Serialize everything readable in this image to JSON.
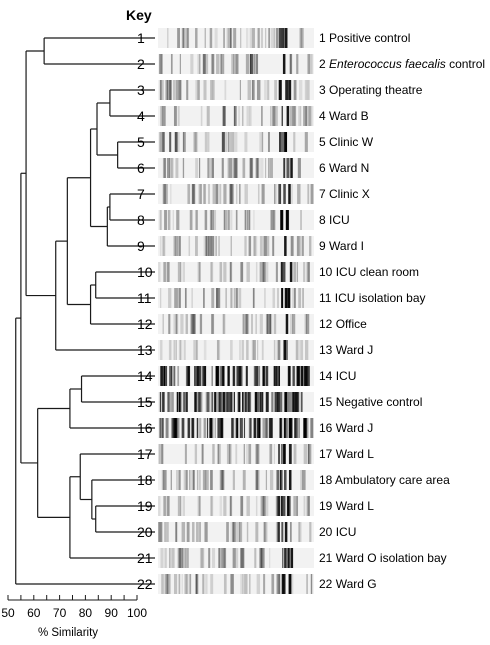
{
  "key_label": "Key",
  "lanes": [
    {
      "id": 1,
      "num": "1",
      "label_num": "1",
      "label": "Positive control",
      "label_italic": "",
      "label_after": ""
    },
    {
      "id": 2,
      "num": "2",
      "label_num": "2",
      "label": "",
      "label_italic": "Enterococcus faecalis",
      "label_after": " control"
    },
    {
      "id": 3,
      "num": "3",
      "label_num": "3",
      "label": "Operating theatre",
      "label_italic": "",
      "label_after": ""
    },
    {
      "id": 4,
      "num": "4",
      "label_num": "4",
      "label": "Ward B",
      "label_italic": "",
      "label_after": ""
    },
    {
      "id": 5,
      "num": "5",
      "label_num": "5",
      "label": "Clinic W",
      "label_italic": "",
      "label_after": ""
    },
    {
      "id": 6,
      "num": "6",
      "label_num": "6",
      "label": "Ward N",
      "label_italic": "",
      "label_after": ""
    },
    {
      "id": 7,
      "num": "7",
      "label_num": "7",
      "label": "Clinic X",
      "label_italic": "",
      "label_after": ""
    },
    {
      "id": 8,
      "num": "8",
      "label_num": "8",
      "label": "ICU",
      "label_italic": "",
      "label_after": ""
    },
    {
      "id": 9,
      "num": "9",
      "label_num": "9",
      "label": "Ward I",
      "label_italic": "",
      "label_after": ""
    },
    {
      "id": 10,
      "num": "10",
      "label_num": "10",
      "label": "ICU clean room",
      "label_italic": "",
      "label_after": ""
    },
    {
      "id": 11,
      "num": "11",
      "label_num": "11",
      "label": "ICU isolation bay",
      "label_italic": "",
      "label_after": ""
    },
    {
      "id": 12,
      "num": "12",
      "label_num": "12",
      "label": "Office",
      "label_italic": "",
      "label_after": ""
    },
    {
      "id": 13,
      "num": "13",
      "label_num": "13",
      "label": "Ward J",
      "label_italic": "",
      "label_after": ""
    },
    {
      "id": 14,
      "num": "14",
      "label_num": "14",
      "label": "ICU",
      "label_italic": "",
      "label_after": ""
    },
    {
      "id": 15,
      "num": "15",
      "label_num": "15",
      "label": "Negative control",
      "label_italic": "",
      "label_after": ""
    },
    {
      "id": 16,
      "num": "16",
      "label_num": "16",
      "label": "Ward J",
      "label_italic": "",
      "label_after": ""
    },
    {
      "id": 17,
      "num": "17",
      "label_num": "17",
      "label": "Ward L",
      "label_italic": "",
      "label_after": ""
    },
    {
      "id": 18,
      "num": "18",
      "label_num": "18",
      "label": "Ambulatory care area",
      "label_italic": "",
      "label_after": ""
    },
    {
      "id": 19,
      "num": "19",
      "label_num": "19",
      "label": "Ward L",
      "label_italic": "",
      "label_after": ""
    },
    {
      "id": 20,
      "num": "20",
      "label_num": "20",
      "label": "ICU",
      "label_italic": "",
      "label_after": ""
    },
    {
      "id": 21,
      "num": "21",
      "label_num": "21",
      "label": "Ward O isolation bay",
      "label_italic": "",
      "label_after": ""
    },
    {
      "id": 22,
      "num": "22",
      "label_num": "22",
      "label": "Ward G",
      "label_italic": "",
      "label_after": ""
    }
  ],
  "axis": {
    "min": 50,
    "max": 100,
    "ticks": [
      50,
      60,
      70,
      80,
      90,
      100
    ],
    "tick_labels": [
      "50",
      "60",
      "70",
      "80",
      "90",
      "100"
    ],
    "title": "% Similarity"
  },
  "dendrogram": {
    "merges": [
      {
        "a": 3,
        "b": 4,
        "sim": 89.5
      },
      {
        "a": 5,
        "b": 6,
        "sim": 92.5
      },
      {
        "a": 7,
        "b": 8,
        "sim": 89.5
      },
      {
        "a": 9,
        "b": 8,
        "sim": 88.5
      },
      {
        "a": 3,
        "b": 5,
        "sim": 84.5
      },
      {
        "a": 3,
        "b": 7,
        "sim": 82.0
      },
      {
        "a": 10,
        "b": 11,
        "sim": 84.0
      },
      {
        "a": 10,
        "b": 12,
        "sim": 82.0
      },
      {
        "a": 3,
        "b": 10,
        "sim": 73.0
      },
      {
        "a": 3,
        "b": 13,
        "sim": 68.5
      },
      {
        "a": 1,
        "b": 2,
        "sim": 64.0
      },
      {
        "a": 1,
        "b": 3,
        "sim": 57.0
      },
      {
        "a": 14,
        "b": 15,
        "sim": 78.5
      },
      {
        "a": 14,
        "b": 16,
        "sim": 74.0
      },
      {
        "a": 19,
        "b": 20,
        "sim": 84.0
      },
      {
        "a": 18,
        "b": 19,
        "sim": 82.5
      },
      {
        "a": 17,
        "b": 18,
        "sim": 78.0
      },
      {
        "a": 17,
        "b": 21,
        "sim": 74.0
      },
      {
        "a": 14,
        "b": 17,
        "sim": 61.5
      },
      {
        "a": 1,
        "b": 14,
        "sim": 55.0
      },
      {
        "a": 1,
        "b": 22,
        "sim": 53.0
      }
    ]
  },
  "colors": {
    "line": "#1a1a1a",
    "band": "#000000"
  }
}
